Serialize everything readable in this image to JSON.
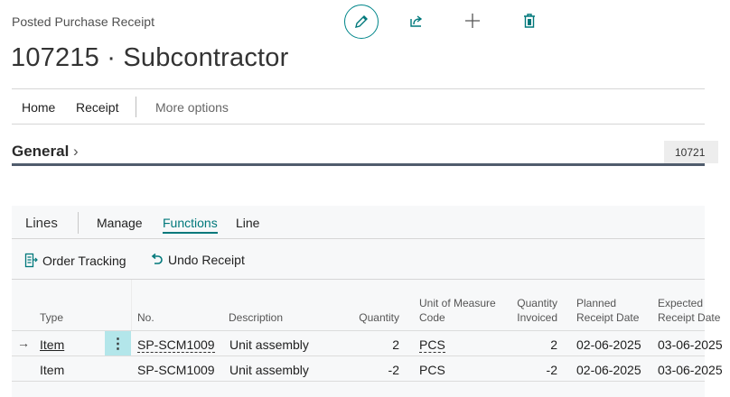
{
  "header": {
    "subtitle": "Posted Purchase Receipt",
    "title": "107215 · Subcontractor"
  },
  "header_actions": {
    "edit": "pencil-icon",
    "share": "share-icon",
    "new": "plus-icon",
    "delete": "trash-icon"
  },
  "action_bar": {
    "items": [
      "Home",
      "Receipt"
    ],
    "more": "More options"
  },
  "general": {
    "title": "General",
    "field_value": "10721"
  },
  "lines": {
    "title": "Lines",
    "tabs": [
      "Manage",
      "Functions",
      "Line"
    ],
    "selected_tab": "Functions",
    "tools": [
      {
        "label": "Order Tracking",
        "icon": "order-tracking-icon"
      },
      {
        "label": "Undo Receipt",
        "icon": "undo-icon"
      }
    ],
    "columns": [
      "Type",
      "No.",
      "Description",
      "Quantity",
      "Unit of Measure Code",
      "Quantity Invoiced",
      "Planned Receipt Date",
      "Expected Receipt Date"
    ],
    "rows": [
      {
        "type": "Item",
        "no": "SP-SCM1009",
        "description": "Unit assembly",
        "quantity": "2",
        "uom": "PCS",
        "qty_invoiced": "2",
        "planned": "02-06-2025",
        "expected": "03-06-2025"
      },
      {
        "type": "Item",
        "no": "SP-SCM1009",
        "description": "Unit assembly",
        "quantity": "-2",
        "uom": "PCS",
        "qty_invoiced": "-2",
        "planned": "02-06-2025",
        "expected": "03-06-2025"
      }
    ]
  },
  "colors": {
    "accent": "#00787b",
    "selected_cell": "#b3e6ea"
  }
}
